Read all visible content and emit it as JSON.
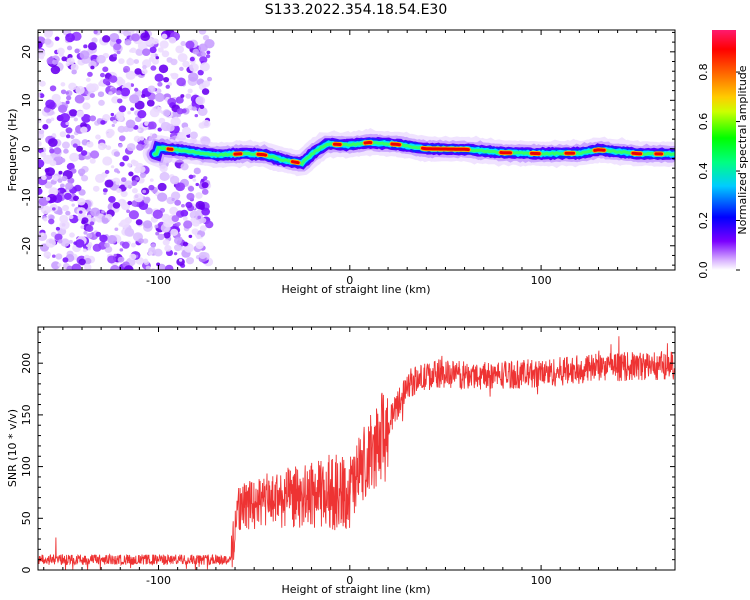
{
  "title": "S133.2022.354.18.54.E30",
  "chart_data": [
    {
      "type": "heatmap",
      "title": "S133.2022.354.18.54.E30",
      "xlabel": "Height of straight line (km)",
      "ylabel": "Frequency (Hz)",
      "xlim": [
        -163,
        170
      ],
      "ylim": [
        -25,
        24.5
      ],
      "xticks": [
        -100,
        0,
        100
      ],
      "yticks": [
        -20,
        -10,
        0,
        10,
        20
      ],
      "grid": false,
      "noise_region_x": [
        -163,
        -73
      ],
      "ridge": [
        {
          "x": -100,
          "y": 0.2
        },
        {
          "x": -85,
          "y": -0.5
        },
        {
          "x": -70,
          "y": -1.3
        },
        {
          "x": -55,
          "y": -1.0
        },
        {
          "x": -45,
          "y": -1.2
        },
        {
          "x": -35,
          "y": -2.3
        },
        {
          "x": -25,
          "y": -3.0
        },
        {
          "x": -18,
          "y": -0.5
        },
        {
          "x": -12,
          "y": 1.0
        },
        {
          "x": 0,
          "y": 0.8
        },
        {
          "x": 10,
          "y": 1.3
        },
        {
          "x": 25,
          "y": 0.9
        },
        {
          "x": 40,
          "y": 0.0
        },
        {
          "x": 60,
          "y": -0.1
        },
        {
          "x": 80,
          "y": -0.8
        },
        {
          "x": 100,
          "y": -1.0
        },
        {
          "x": 120,
          "y": -0.9
        },
        {
          "x": 130,
          "y": -0.2
        },
        {
          "x": 150,
          "y": -1.0
        },
        {
          "x": 170,
          "y": -1.1
        }
      ],
      "colorbar": {
        "label": "Normalized spectral amplitude",
        "range": [
          0,
          0.97
        ],
        "ticks": [
          "0.0",
          "0.2",
          "0.4",
          "0.6",
          "0.8"
        ],
        "colors": [
          "#ffffff",
          "#cc99ff",
          "#7a00ff",
          "#0000ff",
          "#00ffff",
          "#00ff00",
          "#ffff00",
          "#ff7f00",
          "#ff0000",
          "#ff1493"
        ]
      }
    },
    {
      "type": "line",
      "xlabel": "Height of straight line (km)",
      "ylabel": "SNR (10 * v/v)",
      "xlim": [
        -163,
        170
      ],
      "ylim": [
        0,
        235
      ],
      "xticks": [
        -100,
        0,
        100
      ],
      "yticks": [
        0,
        50,
        100,
        150,
        200
      ],
      "grid": false,
      "color": "#ee3333",
      "profile": [
        {
          "x": -163,
          "y": 10
        },
        {
          "x": -62,
          "y": 10
        },
        {
          "x": -59,
          "y": 60
        },
        {
          "x": -40,
          "y": 68
        },
        {
          "x": -20,
          "y": 72
        },
        {
          "x": 0,
          "y": 75
        },
        {
          "x": 20,
          "y": 140
        },
        {
          "x": 30,
          "y": 180
        },
        {
          "x": 45,
          "y": 190
        },
        {
          "x": 60,
          "y": 188
        },
        {
          "x": 100,
          "y": 190
        },
        {
          "x": 130,
          "y": 196
        },
        {
          "x": 170,
          "y": 198
        }
      ]
    }
  ]
}
